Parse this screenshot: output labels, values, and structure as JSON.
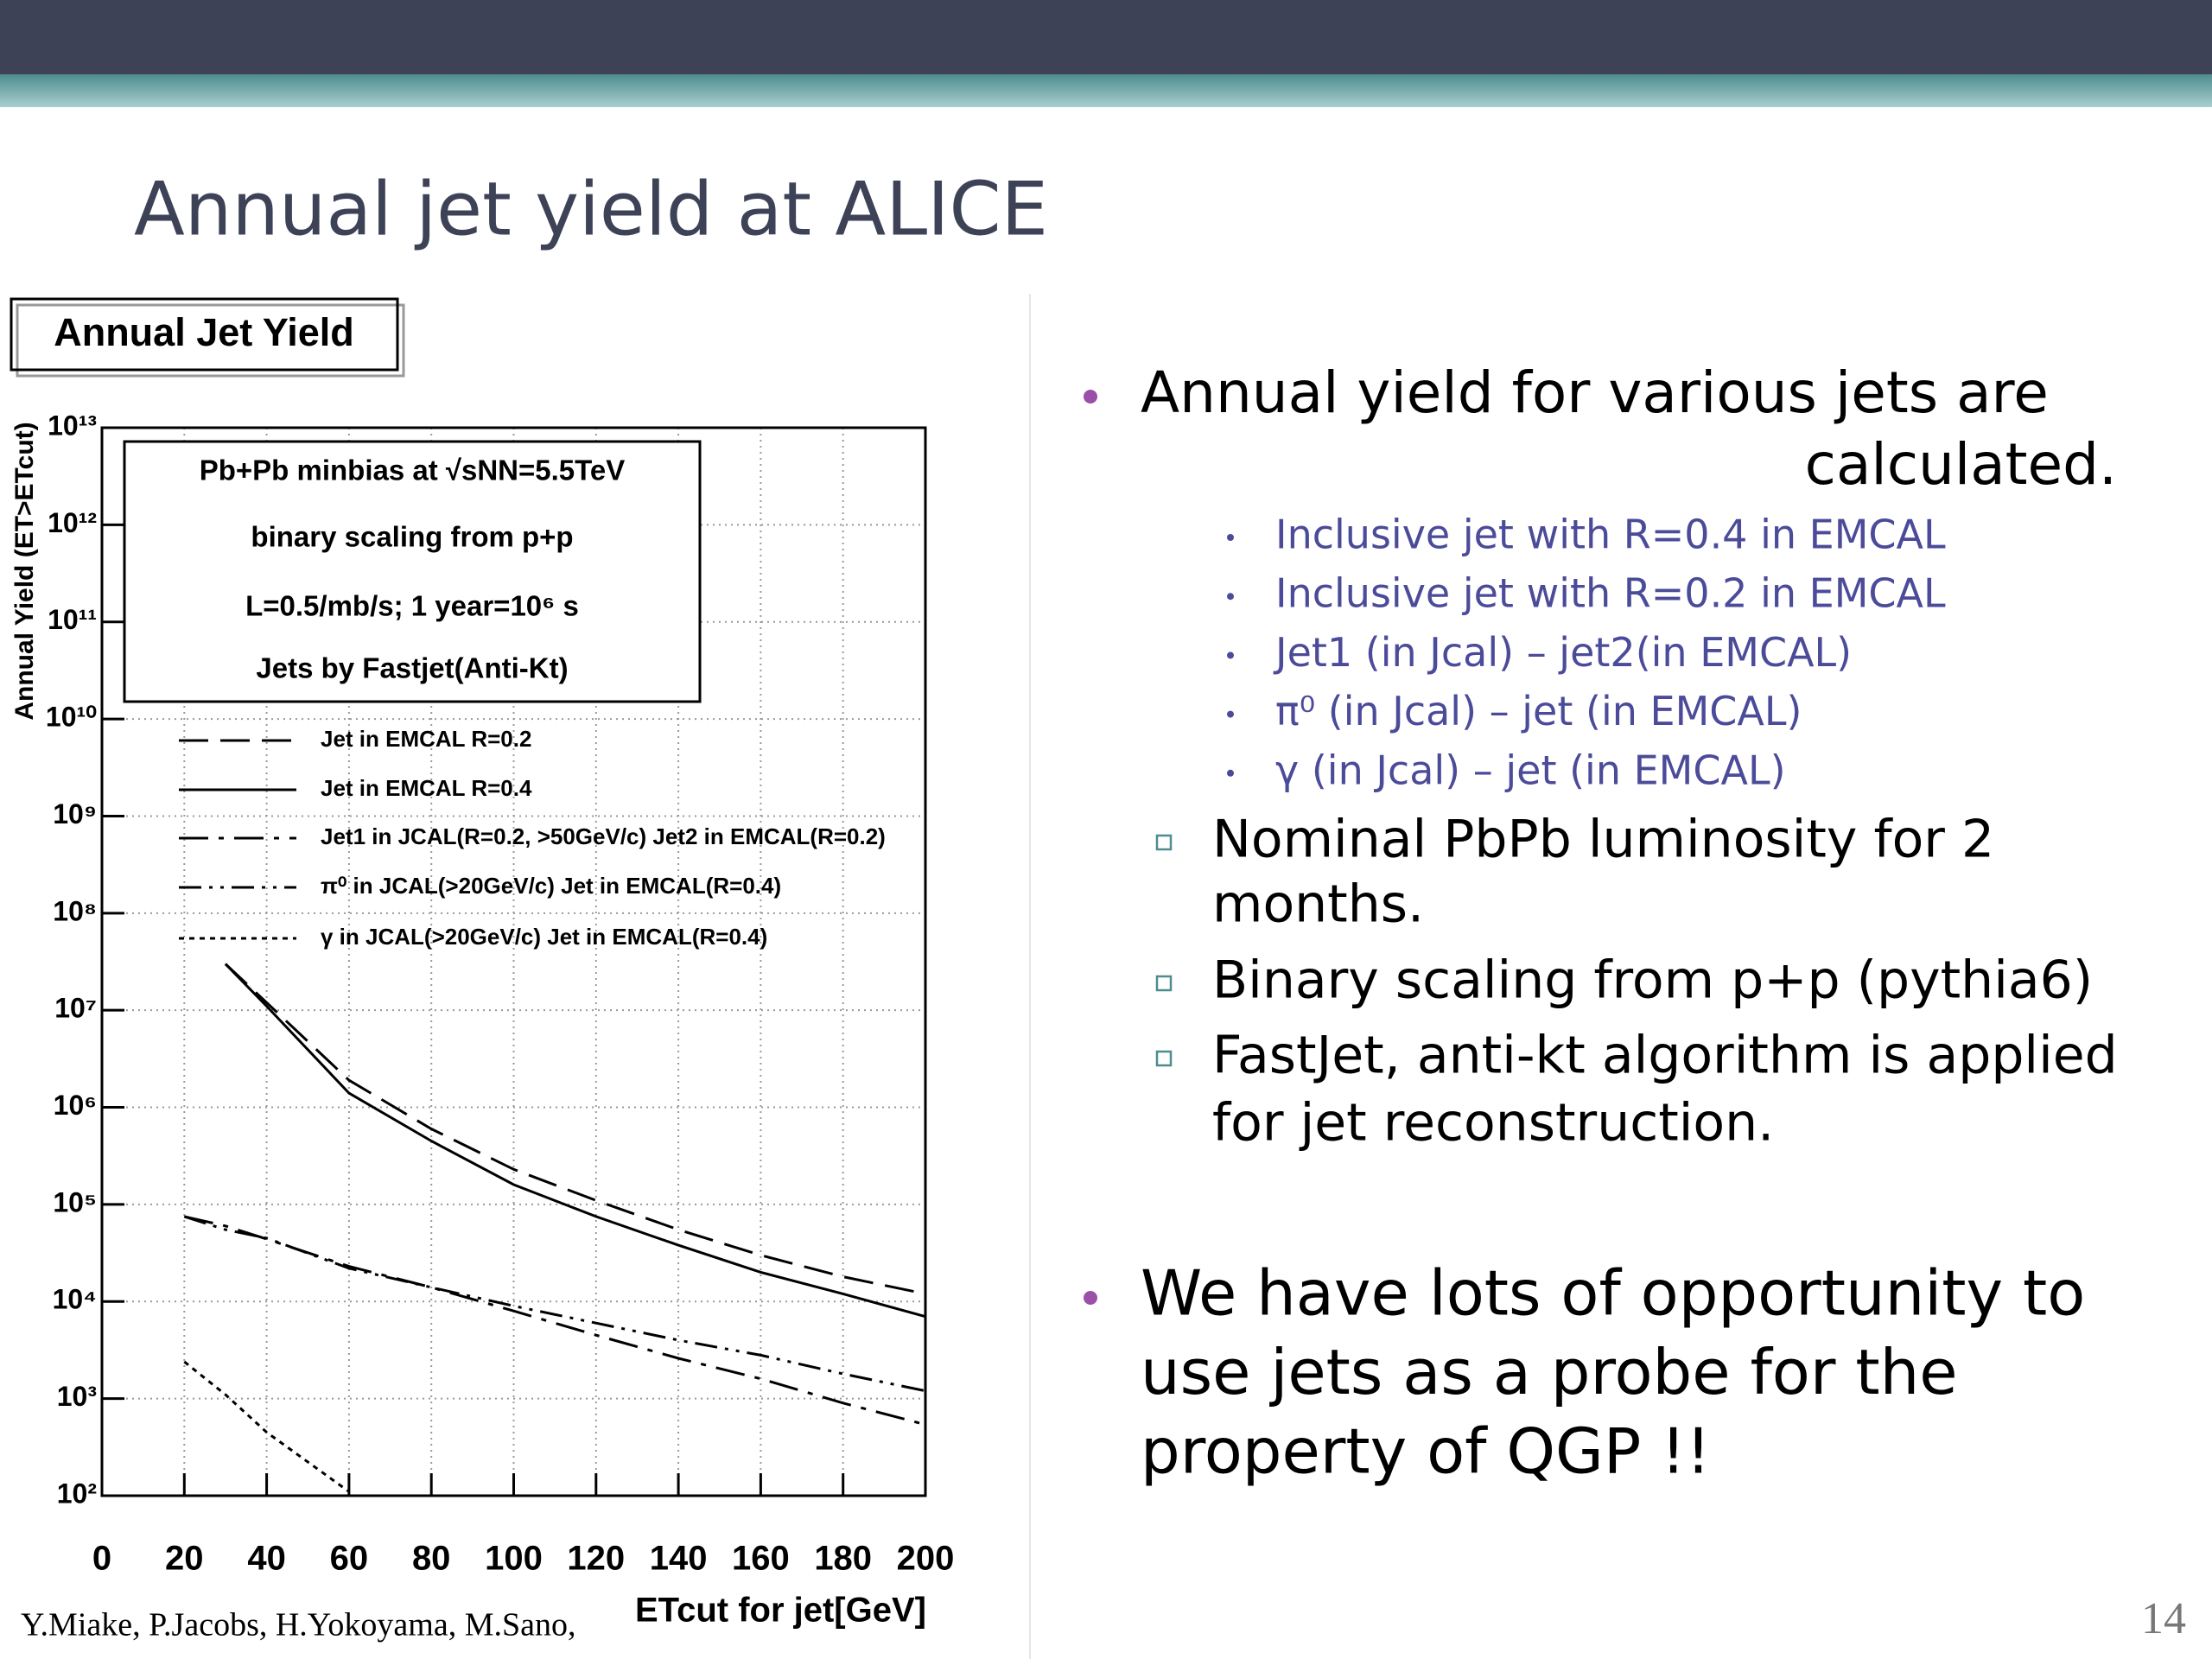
{
  "header": {
    "title": "Annual jet yield at ALICE"
  },
  "bullets": [
    {
      "lines": [
        "Annual yield for various jets are",
        "calculated."
      ],
      "sub": [
        "Inclusive jet with R=0.4 in EMCAL",
        "Inclusive jet with R=0.2 in EMCAL",
        "Jet1 (in Jcal) – jet2(in EMCAL)",
        "π⁰ (in Jcal) – jet (in EMCAL)",
        "γ  (in Jcal) – jet (in EMCAL)"
      ],
      "notes": [
        [
          "Nominal PbPb luminosity for 2",
          "months."
        ],
        [
          "Binary scaling from p+p (pythia6)"
        ],
        [
          "FastJet, anti-kt algorithm is applied",
          "for jet reconstruction."
        ]
      ]
    },
    {
      "lines": [
        "We have lots of opportunity to",
        "use jets as a probe for the",
        "property of QGP !!"
      ]
    }
  ],
  "citation": "Y.Miake, P.Jacobs, H.Yokoyama, M.Sano,",
  "page_number": "14",
  "chart_data": {
    "type": "line",
    "title": "Annual Jet Yield",
    "annotations": [
      "Pb+Pb minbias at √sNN=5.5TeV",
      "binary scaling from p+p",
      "L=0.5/mb/s; 1 year=10⁶ s",
      "Jets by Fastjet(Anti-Kt)"
    ],
    "x_label": "ETcut for jet[GeV]",
    "y_label": "Annual Yield (ET>ETcut)",
    "x": [
      20,
      30,
      40,
      60,
      80,
      100,
      120,
      140,
      160,
      180,
      200
    ],
    "series": [
      {
        "name": "Jet in EMCAL R=0.2",
        "color": "#000000",
        "dash": "dashed",
        "values": [
          null,
          30000000,
          12000000,
          1900000,
          600000,
          230000,
          110000,
          55000,
          30000,
          18000,
          12000
        ]
      },
      {
        "name": "Jet in EMCAL R=0.4",
        "color": "#000000",
        "dash": "solid",
        "values": [
          null,
          30000000,
          11000000,
          1400000,
          450000,
          160000,
          75000,
          38000,
          20000,
          12000,
          7000
        ]
      },
      {
        "name": "Jet1 in JCAL(R=0.2, >50GeV/c) Jet2 in EMCAL(R=0.2)",
        "color": "#000000",
        "dash": "dashdot",
        "values": [
          75000,
          60000,
          44000,
          23000,
          14000,
          8000,
          4500,
          2600,
          1600,
          900,
          540
        ]
      },
      {
        "name": "π⁰ in JCAL(>20GeV/c) Jet in EMCAL(R=0.4)",
        "color": "#000000",
        "dash": "dashdotdot",
        "values": [
          75000,
          55000,
          45000,
          22000,
          14000,
          9000,
          6000,
          4000,
          2800,
          1800,
          1200
        ]
      },
      {
        "name": "γ in JCAL(>20GeV/c) Jet in EMCAL(R=0.4)",
        "color": "#000000",
        "dash": "dotted",
        "values": [
          2400,
          1100,
          450,
          110,
          null,
          null,
          null,
          null,
          null,
          null,
          null
        ]
      }
    ],
    "xlim": [
      0,
      200
    ],
    "xticks": [
      0,
      20,
      40,
      60,
      80,
      100,
      120,
      140,
      160,
      180,
      200
    ],
    "ylim": [
      100,
      10000000000000
    ],
    "yscale": "log",
    "yticks": [
      {
        "value": 100,
        "label": "10²"
      },
      {
        "value": 1000,
        "label": "10³"
      },
      {
        "value": 10000,
        "label": "10⁴"
      },
      {
        "value": 100000,
        "label": "10⁵"
      },
      {
        "value": 1000000,
        "label": "10⁶"
      },
      {
        "value": 10000000,
        "label": "10⁷"
      },
      {
        "value": 100000000,
        "label": "10⁸"
      },
      {
        "value": 1000000000,
        "label": "10⁹"
      },
      {
        "value": 10000000000,
        "label": "10¹⁰"
      },
      {
        "value": 100000000000,
        "label": "10¹¹"
      },
      {
        "value": 1000000000000,
        "label": "10¹²"
      },
      {
        "value": 10000000000000,
        "label": "10¹³"
      }
    ],
    "grid": true
  }
}
